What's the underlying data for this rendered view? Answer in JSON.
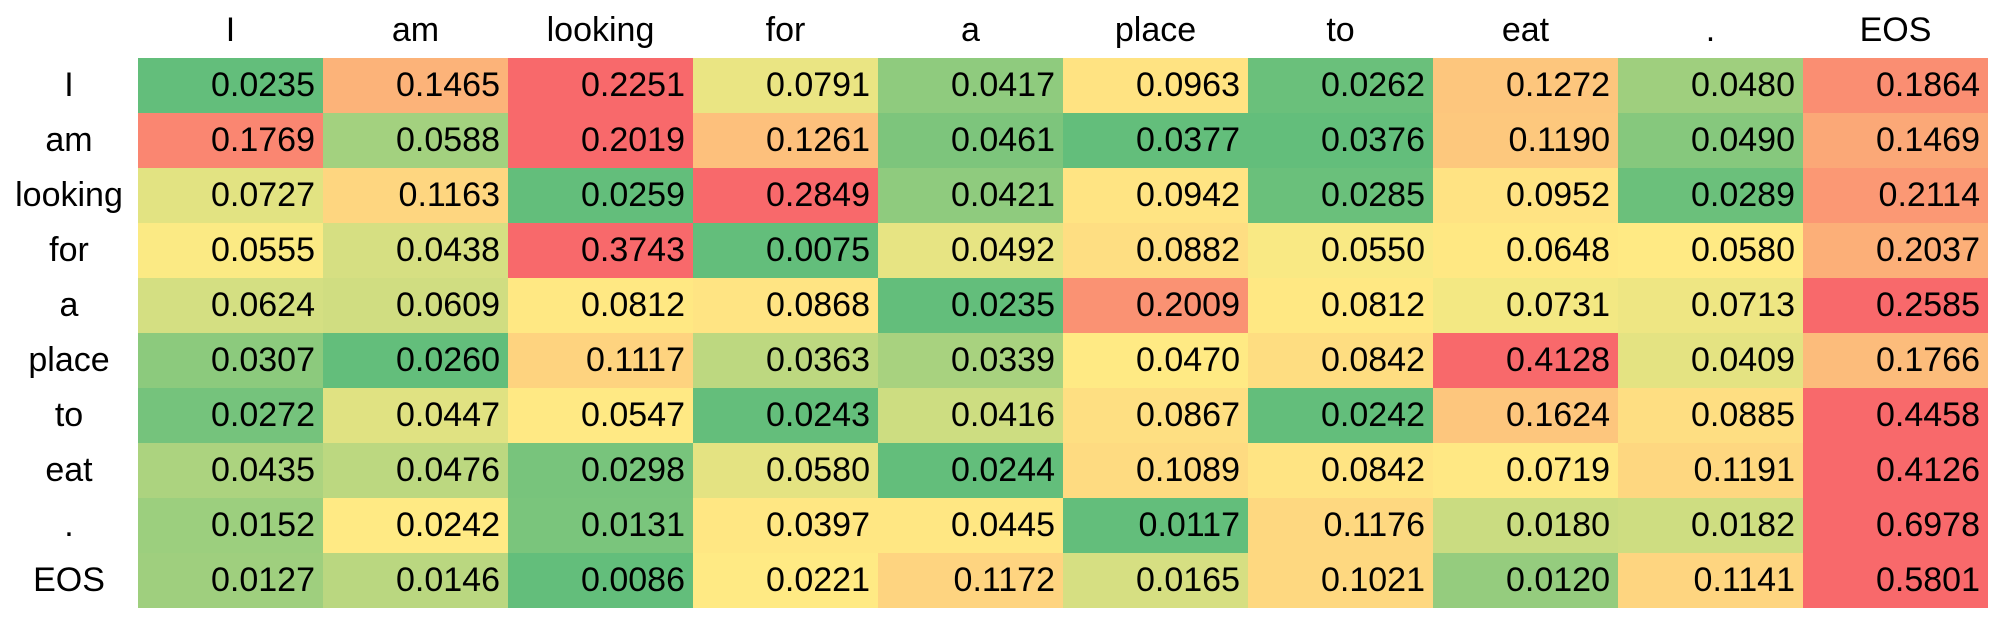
{
  "chart_data": {
    "type": "heatmap",
    "x_labels": [
      "I",
      "am",
      "looking",
      "for",
      "a",
      "place",
      "to",
      "eat",
      ".",
      "EOS"
    ],
    "y_labels": [
      "I",
      "am",
      "looking",
      "for",
      "a",
      "place",
      "to",
      "eat",
      ".",
      "EOS"
    ],
    "values": [
      [
        0.0235,
        0.1465,
        0.2251,
        0.0791,
        0.0417,
        0.0963,
        0.0262,
        0.1272,
        0.048,
        0.1864
      ],
      [
        0.1769,
        0.0588,
        0.2019,
        0.1261,
        0.0461,
        0.0377,
        0.0376,
        0.119,
        0.049,
        0.1469
      ],
      [
        0.0727,
        0.1163,
        0.0259,
        0.2849,
        0.0421,
        0.0942,
        0.0285,
        0.0952,
        0.0289,
        0.2114
      ],
      [
        0.0555,
        0.0438,
        0.3743,
        0.0075,
        0.0492,
        0.0882,
        0.055,
        0.0648,
        0.058,
        0.2037
      ],
      [
        0.0624,
        0.0609,
        0.0812,
        0.0868,
        0.0235,
        0.2009,
        0.0812,
        0.0731,
        0.0713,
        0.2585
      ],
      [
        0.0307,
        0.026,
        0.1117,
        0.0363,
        0.0339,
        0.047,
        0.0842,
        0.4128,
        0.0409,
        0.1766
      ],
      [
        0.0272,
        0.0447,
        0.0547,
        0.0243,
        0.0416,
        0.0867,
        0.0242,
        0.1624,
        0.0885,
        0.4458
      ],
      [
        0.0435,
        0.0476,
        0.0298,
        0.058,
        0.0244,
        0.1089,
        0.0842,
        0.0719,
        0.1191,
        0.4126
      ],
      [
        0.0152,
        0.0242,
        0.0131,
        0.0397,
        0.0445,
        0.0117,
        0.1176,
        0.018,
        0.0182,
        0.6978
      ],
      [
        0.0127,
        0.0146,
        0.0086,
        0.0221,
        0.1172,
        0.0165,
        0.1021,
        0.012,
        0.1141,
        0.5801
      ]
    ],
    "color_scale": "per-row green-yellow-red (low = green, mid = yellow, high = red)",
    "colors": {
      "low": "#63be7b",
      "mid": "#ffeb84",
      "high": "#f8696b"
    },
    "value_format": "4 decimal places",
    "grid": false,
    "legend": "none"
  }
}
